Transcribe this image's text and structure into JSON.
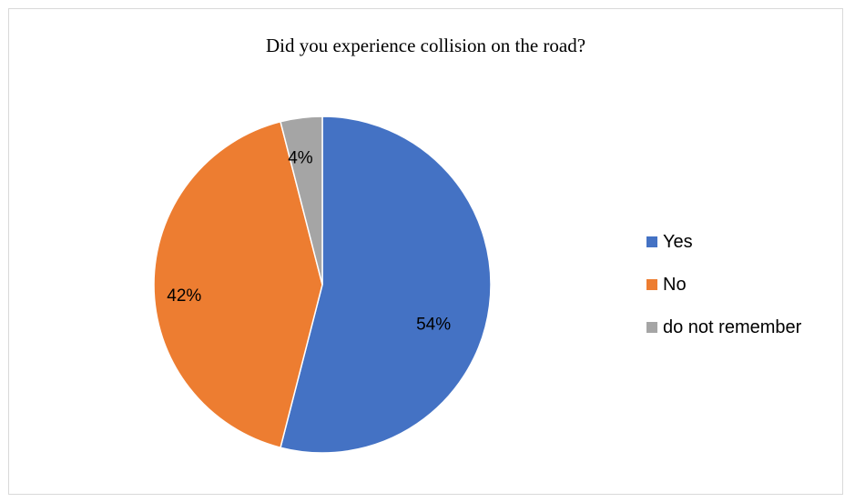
{
  "chart_data": {
    "type": "pie",
    "title": "Did you experience collision on the road?",
    "categories": [
      "Yes",
      "No",
      "do not remember"
    ],
    "values": [
      54,
      42,
      4
    ],
    "labels": [
      "54%",
      "42%",
      "4%"
    ],
    "colors": [
      "#4472C4",
      "#ED7D31",
      "#A5A5A5"
    ],
    "start_angle_deg": 0,
    "direction": "clockwise",
    "legend_position": "right"
  }
}
